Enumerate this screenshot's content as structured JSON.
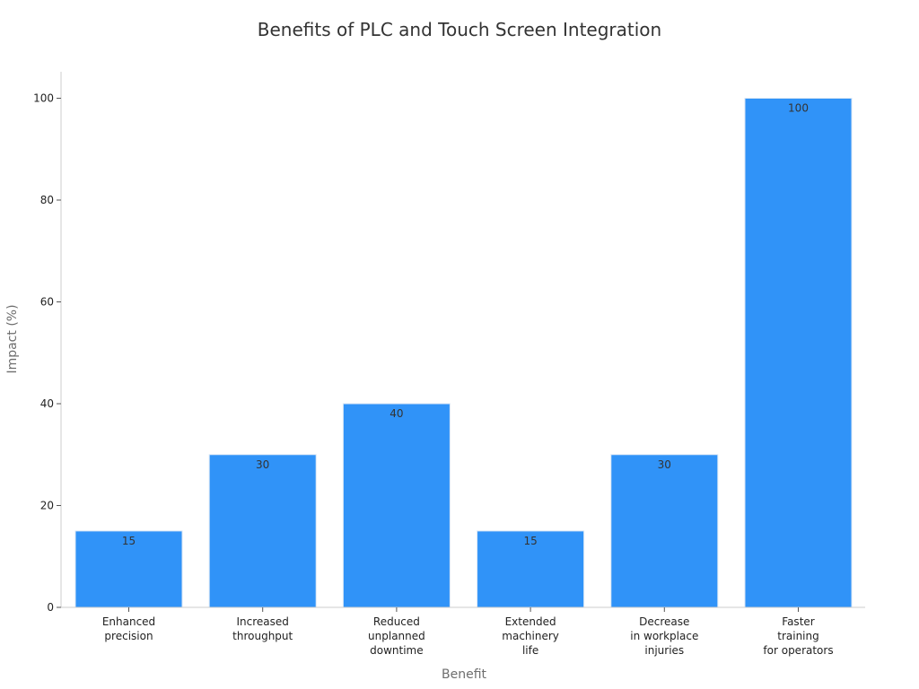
{
  "chart_data": {
    "type": "bar",
    "title": "Benefits of PLC and Touch Screen Integration",
    "xlabel": "Benefit",
    "ylabel": "Impact (%)",
    "categories": [
      [
        "Enhanced",
        "precision"
      ],
      [
        "Increased",
        "throughput"
      ],
      [
        "Reduced",
        "unplanned",
        "downtime"
      ],
      [
        "Extended",
        "machinery",
        "life"
      ],
      [
        "Decrease",
        "in workplace",
        "injuries"
      ],
      [
        "Faster",
        "training",
        "for operators"
      ]
    ],
    "values": [
      15,
      30,
      40,
      15,
      30,
      100
    ],
    "data_labels": [
      "15",
      "30",
      "40",
      "15",
      "30",
      "100"
    ],
    "ylim": [
      0,
      105
    ],
    "yticks": [
      0,
      20,
      40,
      60,
      80,
      100
    ],
    "bar_color": "#3093f8",
    "bar_edge_color": "#d8e6f5",
    "grid": false,
    "legend": "none"
  }
}
